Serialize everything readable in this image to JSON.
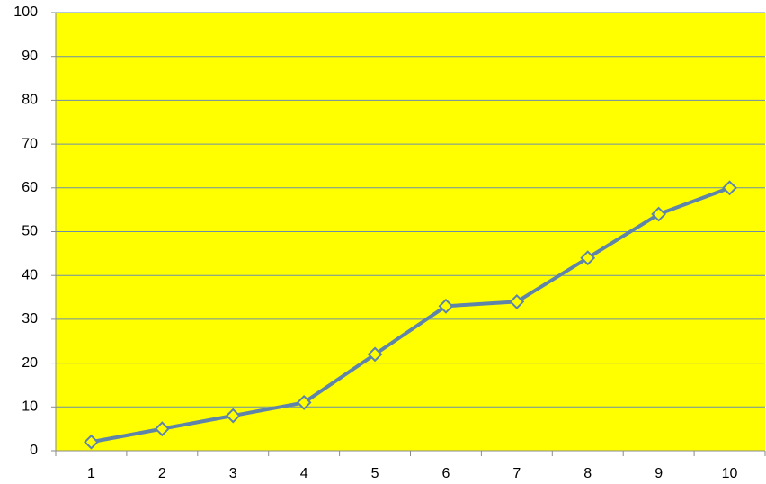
{
  "chart_data": {
    "type": "line",
    "categories": [
      1,
      2,
      3,
      4,
      5,
      6,
      7,
      8,
      9,
      10
    ],
    "values": [
      2,
      5,
      8,
      11,
      22,
      33,
      34,
      44,
      54,
      60
    ],
    "color": "#5f84aa",
    "marker_fill": "#ffff00",
    "plot_background": "#ffff00",
    "ylim": [
      0,
      100
    ],
    "yticks": [
      0,
      10,
      20,
      30,
      40,
      50,
      60,
      70,
      80,
      90,
      100
    ],
    "grid": true
  }
}
